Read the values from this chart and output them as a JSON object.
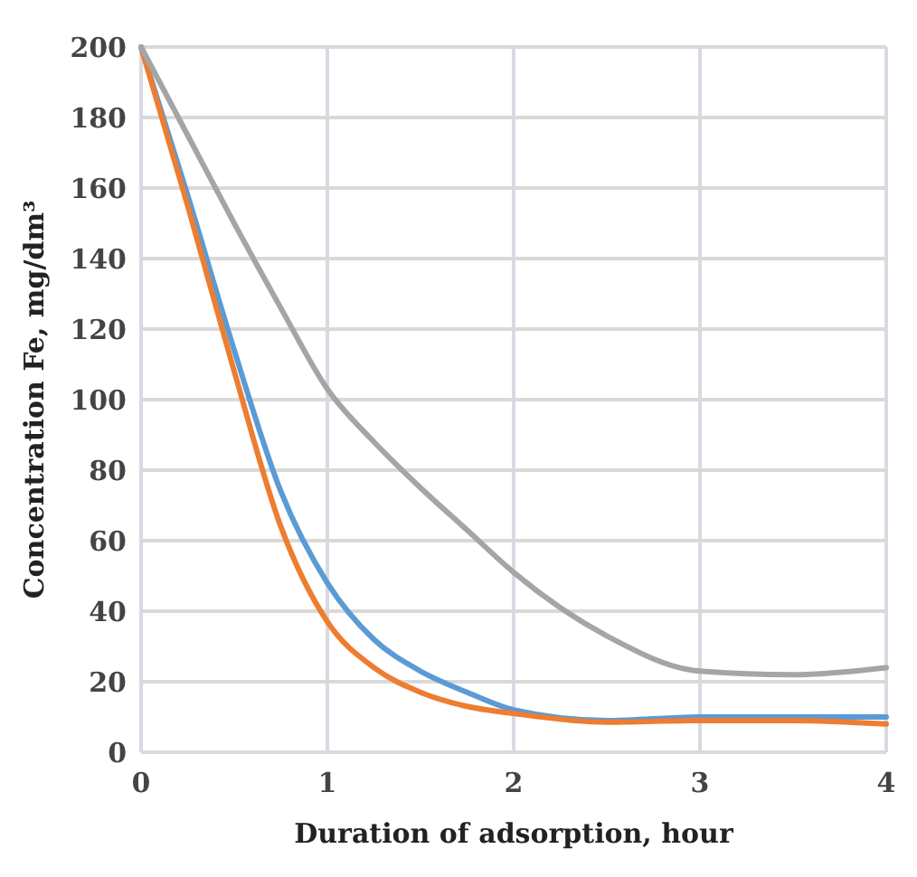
{
  "chart_data": {
    "type": "line",
    "xlabel": "Duration of adsorption, hour",
    "ylabel": "Concentration Fe, mg/dm³",
    "xlim": [
      0,
      4
    ],
    "xticks": [
      0,
      1,
      2,
      3,
      4
    ],
    "ylim": [
      0,
      200
    ],
    "yticks": [
      0,
      20,
      40,
      60,
      80,
      100,
      120,
      140,
      160,
      180,
      200
    ],
    "grid": true,
    "marker": "none",
    "line_style": "solid",
    "x": [
      0,
      0.25,
      0.5,
      0.75,
      1,
      1.25,
      1.5,
      1.75,
      2,
      2.5,
      3,
      3.5,
      4
    ],
    "series": [
      {
        "color": "#5b9bd5",
        "values": [
          200,
          158,
          114,
          74,
          48,
          32,
          23,
          17,
          12,
          9,
          10,
          10,
          10
        ]
      },
      {
        "color": "#ed7d31",
        "values": [
          200,
          155,
          108,
          64,
          37,
          24,
          17,
          13,
          11,
          8.5,
          9,
          9,
          8
        ]
      },
      {
        "color": "#a5a5a5",
        "values": [
          200,
          175,
          150,
          126,
          103,
          88,
          75,
          63,
          51,
          33,
          23,
          22,
          24
        ]
      }
    ]
  }
}
